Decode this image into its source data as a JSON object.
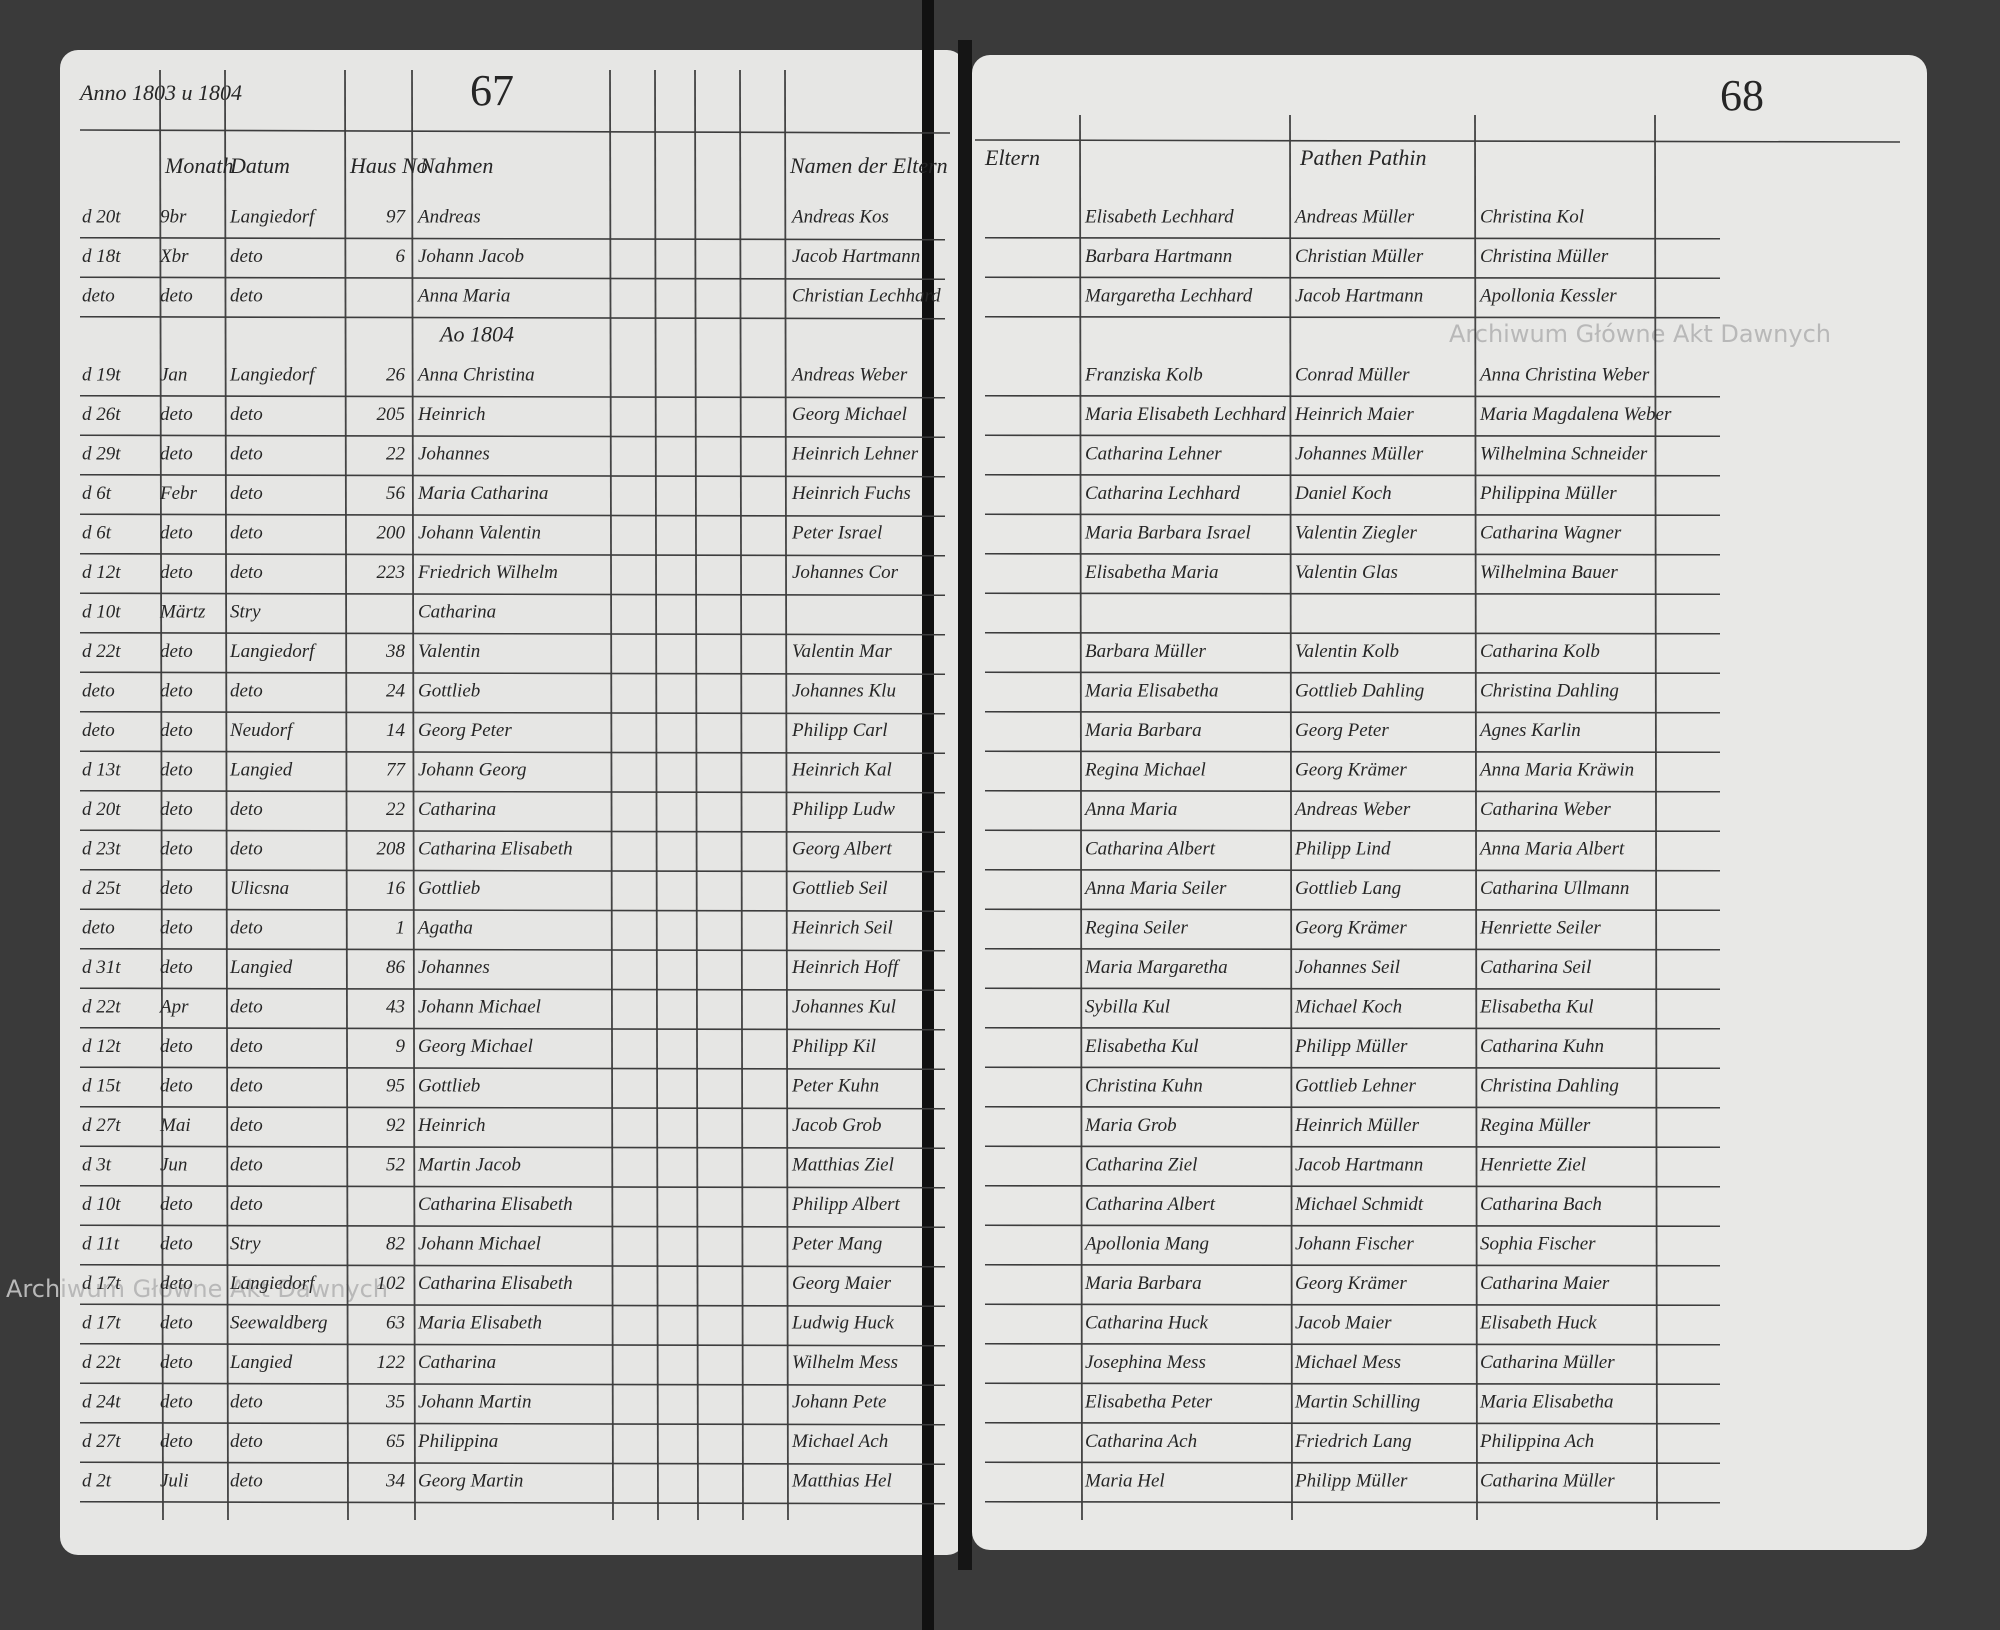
{
  "left_page": {
    "page_number": "67",
    "year": "Anno 1803 u 1804",
    "headers": [
      "Monath",
      "Datum",
      "Haus No",
      "Nahmen",
      "Namen der Eltern"
    ],
    "subheading": "Ao 1804",
    "rows": [
      [
        "d 20t",
        "9br",
        "Langiedorf",
        "97",
        "Andreas",
        "Andreas Kos"
      ],
      [
        "d 18t",
        "Xbr",
        "deto",
        "6",
        "Johann Jacob",
        "Jacob Hartmann"
      ],
      [
        "deto",
        "deto",
        "deto",
        "",
        "Anna Maria",
        "Christian Lechhard"
      ],
      [
        "d 19t",
        "Jan",
        "Langiedorf",
        "26",
        "Anna Christina",
        "Andreas Weber"
      ],
      [
        "d 26t",
        "deto",
        "deto",
        "205",
        "Heinrich",
        "Georg Michael"
      ],
      [
        "d 29t",
        "deto",
        "deto",
        "22",
        "Johannes",
        "Heinrich Lehner"
      ],
      [
        "d 6t",
        "Febr",
        "deto",
        "56",
        "Maria Catharina",
        "Heinrich Fuchs"
      ],
      [
        "d 6t",
        "deto",
        "deto",
        "200",
        "Johann Valentin",
        "Peter Israel"
      ],
      [
        "d 12t",
        "deto",
        "deto",
        "223",
        "Friedrich Wilhelm",
        "Johannes Cor"
      ],
      [
        "d 10t",
        "Märtz",
        "Stry",
        "",
        "Catharina",
        ""
      ],
      [
        "d 22t",
        "deto",
        "Langiedorf",
        "38",
        "Valentin",
        "Valentin Mar"
      ],
      [
        "deto",
        "deto",
        "deto",
        "24",
        "Gottlieb",
        "Johannes Klu"
      ],
      [
        "deto",
        "deto",
        "Neudorf",
        "14",
        "Georg Peter",
        "Philipp Carl"
      ],
      [
        "d 13t",
        "deto",
        "Langied",
        "77",
        "Johann Georg",
        "Heinrich Kal"
      ],
      [
        "d 20t",
        "deto",
        "deto",
        "22",
        "Catharina",
        "Philipp Ludw"
      ],
      [
        "d 23t",
        "deto",
        "deto",
        "208",
        "Catharina Elisabeth",
        "Georg Albert"
      ],
      [
        "d 25t",
        "deto",
        "Ulicsna",
        "16",
        "Gottlieb",
        "Gottlieb Seil"
      ],
      [
        "deto",
        "deto",
        "deto",
        "1",
        "Agatha",
        "Heinrich Seil"
      ],
      [
        "d 31t",
        "deto",
        "Langied",
        "86",
        "Johannes",
        "Heinrich Hoff"
      ],
      [
        "d 22t",
        "Apr",
        "deto",
        "43",
        "Johann Michael",
        "Johannes Kul"
      ],
      [
        "d 12t",
        "deto",
        "deto",
        "9",
        "Georg Michael",
        "Philipp Kil"
      ],
      [
        "d 15t",
        "deto",
        "deto",
        "95",
        "Gottlieb",
        "Peter Kuhn"
      ],
      [
        "d 27t",
        "Mai",
        "deto",
        "92",
        "Heinrich",
        "Jacob Grob"
      ],
      [
        "d 3t",
        "Jun",
        "deto",
        "52",
        "Martin Jacob",
        "Matthias Ziel"
      ],
      [
        "d 10t",
        "deto",
        "deto",
        "",
        "Catharina Elisabeth",
        "Philipp Albert"
      ],
      [
        "d 11t",
        "deto",
        "Stry",
        "82",
        "Johann Michael",
        "Peter Mang"
      ],
      [
        "d 17t",
        "deto",
        "Langiedorf",
        "102",
        "Catharina Elisabeth",
        "Georg Maier"
      ],
      [
        "d 17t",
        "deto",
        "Seewaldberg",
        "63",
        "Maria Elisabeth",
        "Ludwig Huck"
      ],
      [
        "d 22t",
        "deto",
        "Langied",
        "122",
        "Catharina",
        "Wilhelm Mess"
      ],
      [
        "d 24t",
        "deto",
        "deto",
        "35",
        "Johann Martin",
        "Johann Pete"
      ],
      [
        "d 27t",
        "deto",
        "deto",
        "65",
        "Philippina",
        "Michael Ach"
      ],
      [
        "d 2t",
        "Juli",
        "deto",
        "34",
        "Georg Martin",
        "Matthias Hel"
      ]
    ]
  },
  "right_page": {
    "page_number": "68",
    "headers": [
      "Eltern",
      "Pathen Pathin"
    ],
    "rows": [
      [
        "Elisabeth Lechhard",
        "Andreas Müller",
        "Christina Kol"
      ],
      [
        "Barbara Hartmann",
        "Christian Müller",
        "Christina Müller"
      ],
      [
        "Margaretha Lechhard",
        "Jacob Hartmann",
        "Apollonia Kessler"
      ],
      [
        "Franziska Kolb",
        "Conrad Müller",
        "Anna Christina Weber"
      ],
      [
        "Maria Elisabeth Lechhard",
        "Heinrich Maier",
        "Maria Magdalena Weber"
      ],
      [
        "Catharina Lehner",
        "Johannes Müller",
        "Wilhelmina Schneider"
      ],
      [
        "Catharina Lechhard",
        "Daniel Koch",
        "Philippina Müller"
      ],
      [
        "Maria Barbara Israel",
        "Valentin Ziegler",
        "Catharina Wagner"
      ],
      [
        "Elisabetha Maria",
        "Valentin Glas",
        "Wilhelmina Bauer"
      ],
      [
        "",
        "",
        ""
      ],
      [
        "Barbara Müller",
        "Valentin Kolb",
        "Catharina Kolb"
      ],
      [
        "Maria Elisabetha",
        "Gottlieb Dahling",
        "Christina Dahling"
      ],
      [
        "Maria Barbara",
        "Georg Peter",
        "Agnes Karlin"
      ],
      [
        "Regina Michael",
        "Georg Krämer",
        "Anna Maria Kräwin"
      ],
      [
        "Anna Maria",
        "Andreas Weber",
        "Catharina Weber"
      ],
      [
        "Catharina Albert",
        "Philipp Lind",
        "Anna Maria Albert"
      ],
      [
        "Anna Maria Seiler",
        "Gottlieb Lang",
        "Catharina Ullmann"
      ],
      [
        "Regina Seiler",
        "Georg Krämer",
        "Henriette Seiler"
      ],
      [
        "Maria Margaretha",
        "Johannes Seil",
        "Catharina Seil"
      ],
      [
        "Sybilla Kul",
        "Michael Koch",
        "Elisabetha Kul"
      ],
      [
        "Elisabetha Kul",
        "Philipp Müller",
        "Catharina Kuhn"
      ],
      [
        "Christina Kuhn",
        "Gottlieb Lehner",
        "Christina Dahling"
      ],
      [
        "Maria Grob",
        "Heinrich Müller",
        "Regina Müller"
      ],
      [
        "Catharina Ziel",
        "Jacob Hartmann",
        "Henriette Ziel"
      ],
      [
        "Catharina Albert",
        "Michael Schmidt",
        "Catharina Bach"
      ],
      [
        "Apollonia Mang",
        "Johann Fischer",
        "Sophia Fischer"
      ],
      [
        "Maria Barbara",
        "Georg Krämer",
        "Catharina Maier"
      ],
      [
        "Catharina Huck",
        "Jacob Maier",
        "Elisabeth Huck"
      ],
      [
        "Josephina Mess",
        "Michael Mess",
        "Catharina Müller"
      ],
      [
        "Elisabetha Peter",
        "Martin Schilling",
        "Maria Elisabetha"
      ],
      [
        "Catharina Ach",
        "Friedrich Lang",
        "Philippina Ach"
      ],
      [
        "Maria Hel",
        "Philipp Müller",
        "Catharina Müller"
      ]
    ]
  },
  "watermarks": [
    "Archiwum Główne Akt Dawnych",
    "Archiwum Główne Akt Dawnych"
  ]
}
